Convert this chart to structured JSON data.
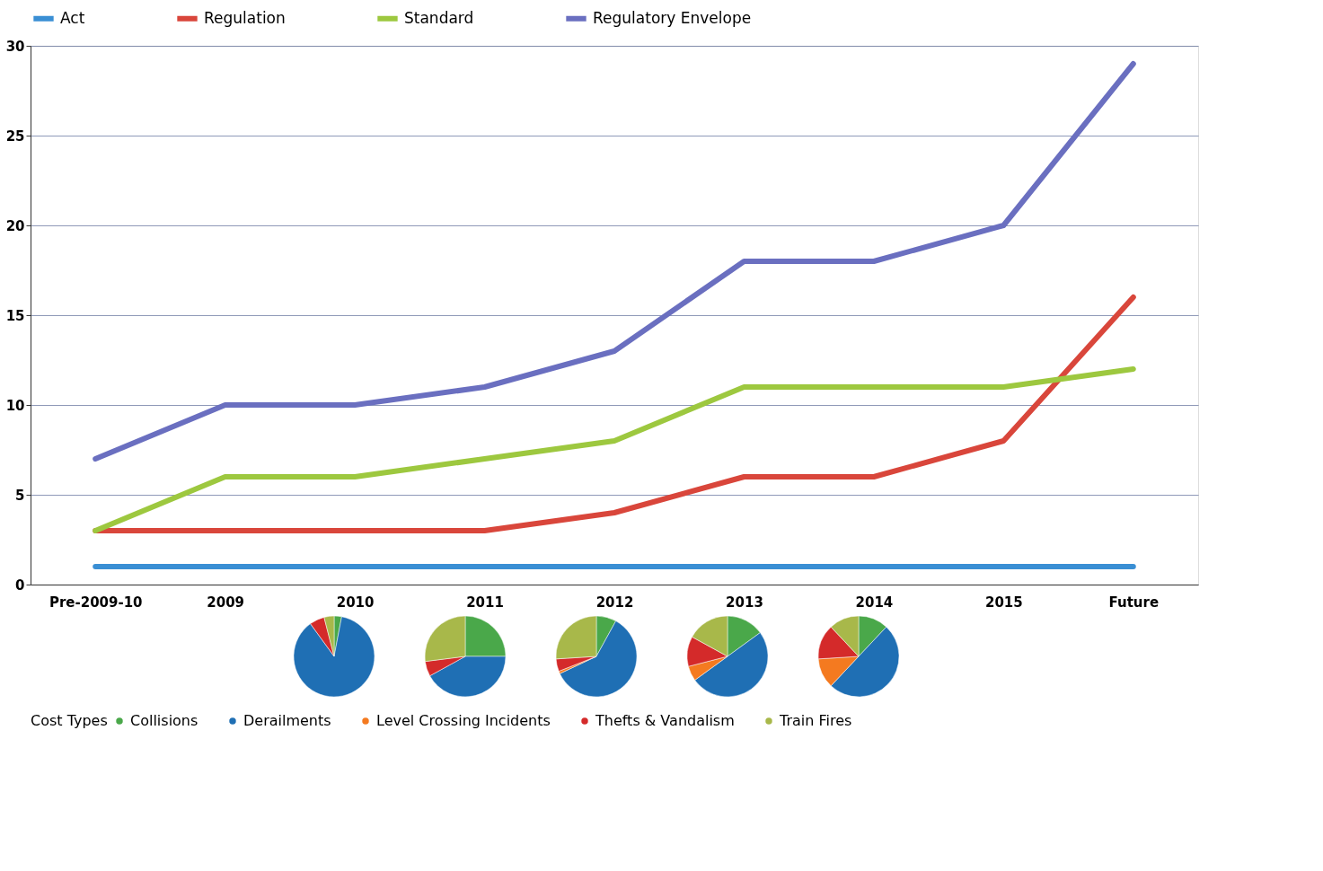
{
  "chart_data": [
    {
      "type": "line",
      "categories": [
        "Pre-2009-10",
        "2009",
        "2010",
        "2011",
        "2012",
        "2013",
        "2014",
        "2015",
        "Future"
      ],
      "ylim": [
        0,
        30
      ],
      "yticks": [
        0,
        5,
        10,
        15,
        20,
        25,
        30
      ],
      "grid": "y",
      "legend": "top",
      "marker": "none",
      "line_style": "solid",
      "series": [
        {
          "name": "Act",
          "color": "#3a8fd4",
          "values": [
            1,
            1,
            1,
            1,
            1,
            1,
            1,
            1,
            1
          ]
        },
        {
          "name": "Regulation",
          "color": "#d9463b",
          "values": [
            3,
            3,
            3,
            3,
            4,
            6,
            6,
            8,
            16
          ]
        },
        {
          "name": "Standard",
          "color": "#9dc83f",
          "values": [
            3,
            6,
            6,
            7,
            8,
            11,
            11,
            11,
            12
          ]
        },
        {
          "name": "Regulatory Envelope",
          "color": "#6a6fc0",
          "values": [
            7,
            10,
            10,
            11,
            13,
            18,
            18,
            20,
            29
          ]
        }
      ]
    },
    {
      "type": "pie",
      "legend_title": "Cost Types",
      "legend": "bottom",
      "categories": [
        "Collisions",
        "Derailments",
        "Level Crossing Incidents",
        "Thefts & Vandalism",
        "Train Fires"
      ],
      "colors": [
        "#4aa84a",
        "#1f6fb4",
        "#f47a20",
        "#d42a2a",
        "#a8b84a"
      ],
      "series": [
        {
          "values": [
            3,
            87,
            null,
            6,
            4
          ]
        },
        {
          "values": [
            25,
            42,
            null,
            6,
            27
          ]
        },
        {
          "values": [
            8,
            60,
            1,
            5,
            26
          ]
        },
        {
          "values": [
            15,
            50,
            6,
            12,
            17
          ]
        },
        {
          "values": [
            12,
            50,
            12,
            14,
            12
          ]
        }
      ]
    }
  ]
}
